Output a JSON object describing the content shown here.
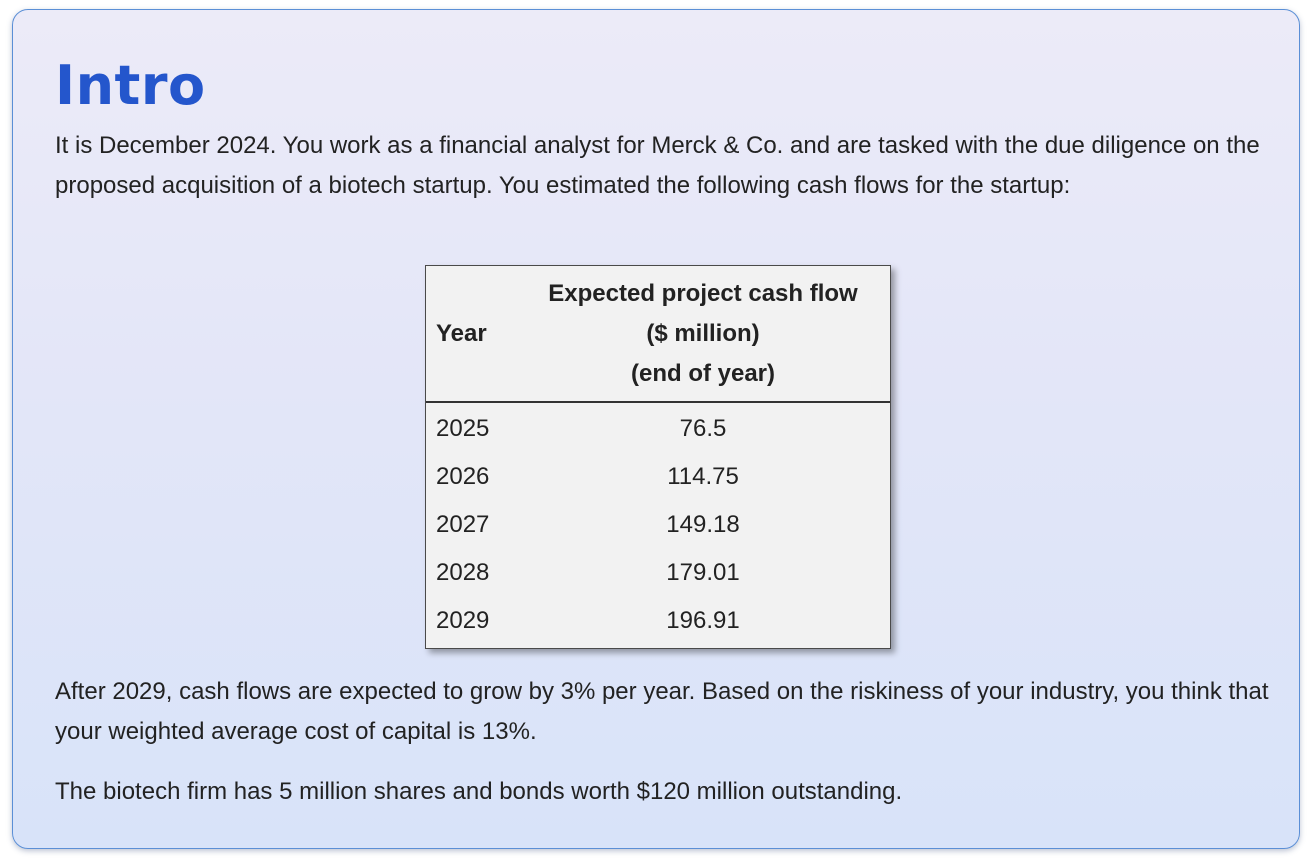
{
  "title": "Intro",
  "paragraphs": {
    "intro": "It is December 2024. You work as a financial analyst for Merck & Co. and are tasked with the due diligence on the proposed acquisition of a biotech startup. You estimated the following cash flows for the startup:",
    "growth": "After 2029, cash flows are expected to grow by 3% per year. Based on the riskiness of your industry, you think that your weighted average cost of capital is 13%.",
    "firm": "The biotech firm has 5 million shares and bonds worth $120 million outstanding."
  },
  "table": {
    "header_year": "Year",
    "header_cf_line1": "Expected project cash flow",
    "header_cf_line2": "($ million)",
    "header_cf_line3": "(end of year)",
    "rows": [
      {
        "year": "2025",
        "cash_flow": "76.5"
      },
      {
        "year": "2026",
        "cash_flow": "114.75"
      },
      {
        "year": "2027",
        "cash_flow": "149.18"
      },
      {
        "year": "2028",
        "cash_flow": "179.01"
      },
      {
        "year": "2029",
        "cash_flow": "196.91"
      }
    ]
  },
  "colors": {
    "title": "#2456cc",
    "card_border": "#5b8fd6",
    "card_background": "#e3e6f8",
    "table_background": "#f2f2f2"
  }
}
